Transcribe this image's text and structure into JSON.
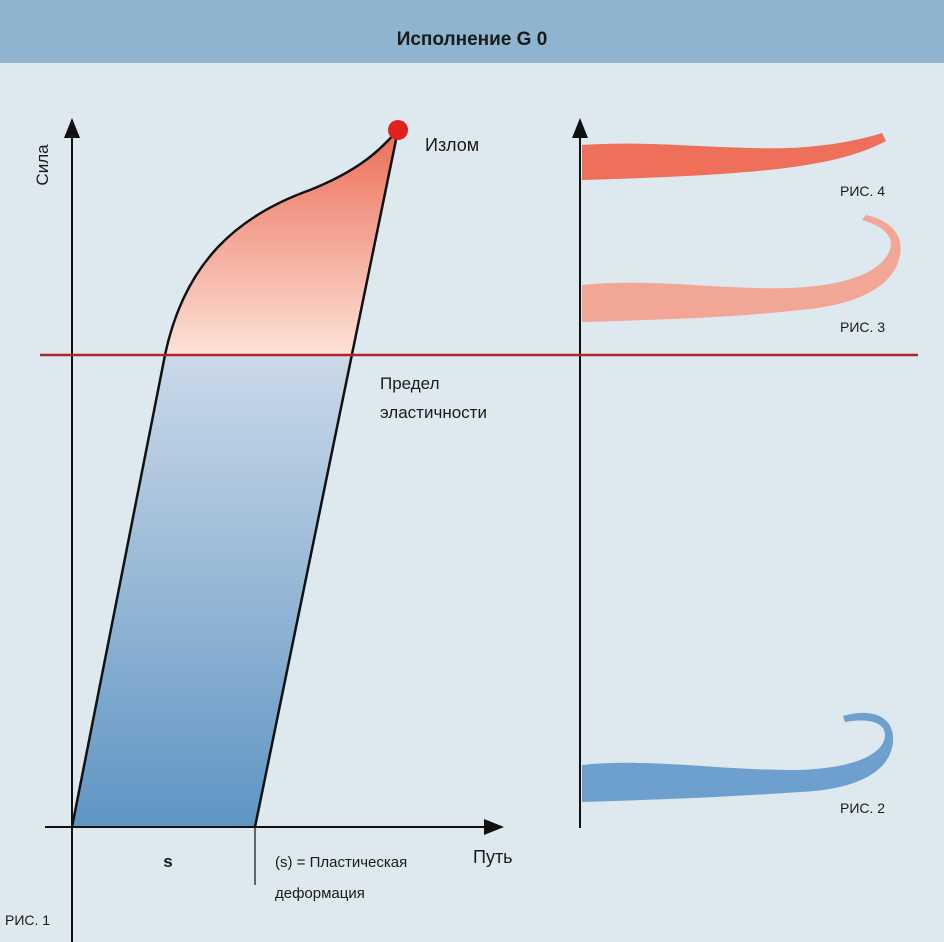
{
  "header": {
    "title": "Исполнение G 0"
  },
  "diagram": {
    "y_axis_label": "Сила",
    "x_axis_label": "Путь",
    "break_label": "Излом",
    "elastic_limit_label": [
      "Предел",
      "эластичности"
    ],
    "s_label": "s",
    "plastic_label": [
      "(s) = Пластическая",
      "деформация"
    ],
    "figure_label": "РИС. 1"
  },
  "figures": [
    {
      "label": "РИС. 4"
    },
    {
      "label": "РИС. 3"
    },
    {
      "label": "РИС. 2"
    }
  ]
}
